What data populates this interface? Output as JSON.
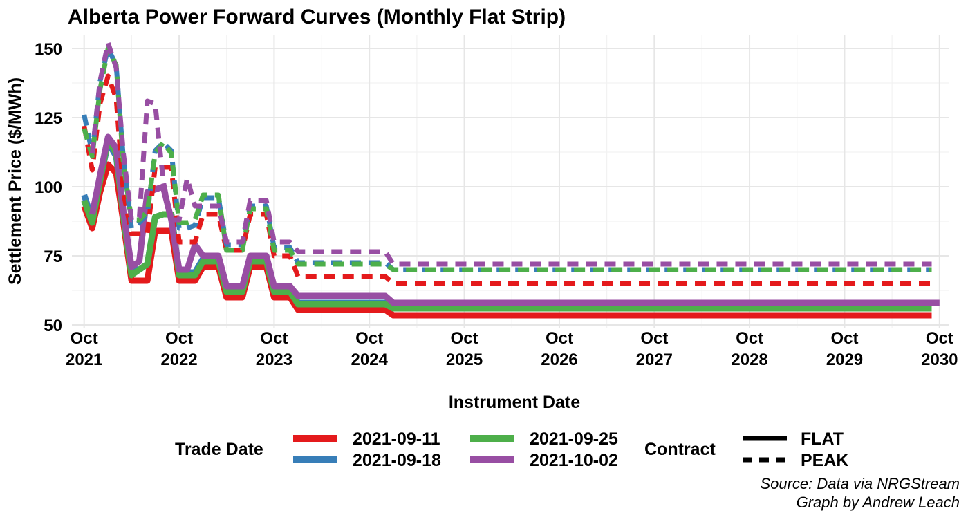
{
  "chart_data": {
    "type": "line",
    "title": "Alberta Power Forward Curves (Monthly Flat Strip)",
    "xlabel": "Instrument Date",
    "ylabel": "Settlement Price ($/MWh)",
    "ylim": [
      49,
      155
    ],
    "yticks": [
      50,
      75,
      100,
      125,
      150
    ],
    "xlim": [
      "2021-08-15",
      "2030-11-05"
    ],
    "xticks": [
      {
        "date": "2021-10-01",
        "label": [
          "Oct",
          "2021"
        ]
      },
      {
        "date": "2022-10-01",
        "label": [
          "Oct",
          "2022"
        ]
      },
      {
        "date": "2023-10-01",
        "label": [
          "Oct",
          "2023"
        ]
      },
      {
        "date": "2024-10-01",
        "label": [
          "Oct",
          "2024"
        ]
      },
      {
        "date": "2025-10-01",
        "label": [
          "Oct",
          "2025"
        ]
      },
      {
        "date": "2026-10-01",
        "label": [
          "Oct",
          "2026"
        ]
      },
      {
        "date": "2027-10-01",
        "label": [
          "Oct",
          "2027"
        ]
      },
      {
        "date": "2028-10-01",
        "label": [
          "Oct",
          "2028"
        ]
      },
      {
        "date": "2029-10-01",
        "label": [
          "Oct",
          "2029"
        ]
      },
      {
        "date": "2030-10-01",
        "label": [
          "Oct",
          "2030"
        ]
      }
    ],
    "grid": true,
    "legend": {
      "position": "bottom",
      "color_title": "Trade Date",
      "linetype_title": "Contract",
      "linetypes": [
        {
          "label": "FLAT",
          "dash": "solid"
        },
        {
          "label": "PEAK",
          "dash": "dashed"
        }
      ]
    },
    "series": [
      {
        "name": "2021-09-11",
        "color": "#E41A1C",
        "flat": {
          "x": [
            "2021-10-01",
            "2021-11-01",
            "2021-12-01",
            "2022-01-01",
            "2022-02-01",
            "2022-03-01",
            "2022-04-01",
            "2022-05-01",
            "2022-06-01",
            "2022-07-01",
            "2022-08-01",
            "2022-09-01",
            "2022-10-01",
            "2022-11-01",
            "2022-12-01",
            "2023-01-01",
            "2023-02-01",
            "2023-03-01",
            "2023-04-01",
            "2023-05-01",
            "2023-06-01",
            "2023-07-01",
            "2023-08-01",
            "2023-09-01",
            "2023-10-01",
            "2023-11-01",
            "2023-12-01",
            "2024-01-01",
            "2024-12-01",
            "2025-01-01",
            "2030-09-01"
          ],
          "y": [
            93,
            85,
            98,
            108,
            105,
            87,
            66,
            66,
            66,
            84,
            84,
            84,
            66,
            66,
            66,
            71,
            71,
            71,
            60,
            60,
            60,
            71,
            71,
            71,
            60,
            60,
            60,
            55.5,
            55.5,
            53.5,
            53.5
          ]
        },
        "peak": {
          "x": [
            "2021-10-01",
            "2021-11-01",
            "2021-12-01",
            "2022-01-01",
            "2022-02-01",
            "2022-03-01",
            "2022-04-01",
            "2022-05-01",
            "2022-06-01",
            "2022-07-01",
            "2022-08-01",
            "2022-09-01",
            "2022-10-01",
            "2022-11-01",
            "2022-12-01",
            "2023-01-01",
            "2023-02-01",
            "2023-03-01",
            "2023-04-01",
            "2023-05-01",
            "2023-06-01",
            "2023-07-01",
            "2023-08-01",
            "2023-09-01",
            "2023-10-01",
            "2023-11-01",
            "2023-12-01",
            "2024-01-01",
            "2024-12-01",
            "2025-01-01",
            "2030-09-01"
          ],
          "y": [
            122,
            106,
            130,
            140,
            132,
            98,
            83,
            83,
            83,
            107,
            107,
            107,
            80,
            80,
            80,
            90,
            90,
            90,
            77,
            77,
            77,
            90,
            90,
            90,
            75,
            75,
            75,
            67.5,
            67.5,
            65,
            65
          ]
        }
      },
      {
        "name": "2021-09-18",
        "color": "#377EB8",
        "flat": {
          "x": [
            "2021-10-01",
            "2021-11-01",
            "2021-12-01",
            "2022-01-01",
            "2022-02-01",
            "2022-03-01",
            "2022-04-01",
            "2022-05-01",
            "2022-06-01",
            "2022-07-01",
            "2022-08-01",
            "2022-09-01",
            "2022-10-01",
            "2022-11-01",
            "2022-12-01",
            "2023-01-01",
            "2023-02-01",
            "2023-03-01",
            "2023-04-01",
            "2023-05-01",
            "2023-06-01",
            "2023-07-01",
            "2023-08-01",
            "2023-09-01",
            "2023-10-01",
            "2023-11-01",
            "2023-12-01",
            "2024-01-01",
            "2024-12-01",
            "2025-01-01",
            "2030-09-01"
          ],
          "y": [
            97,
            88,
            102,
            116,
            111,
            90,
            70,
            70,
            72,
            89,
            90,
            90,
            69,
            69,
            69,
            74,
            74,
            74,
            63,
            63,
            63,
            74,
            74,
            74,
            63,
            63,
            63,
            58,
            58,
            56,
            56
          ]
        },
        "peak": {
          "x": [
            "2021-10-01",
            "2021-11-01",
            "2021-12-01",
            "2022-01-01",
            "2022-02-01",
            "2022-03-01",
            "2022-04-01",
            "2022-05-01",
            "2022-06-01",
            "2022-07-01",
            "2022-08-01",
            "2022-09-01",
            "2022-10-01",
            "2022-11-01",
            "2022-12-01",
            "2023-01-01",
            "2023-02-01",
            "2023-03-01",
            "2023-04-01",
            "2023-05-01",
            "2023-06-01",
            "2023-07-01",
            "2023-08-01",
            "2023-09-01",
            "2023-10-01",
            "2023-11-01",
            "2023-12-01",
            "2024-01-01",
            "2024-12-01",
            "2025-01-01",
            "2030-09-01"
          ],
          "y": [
            126,
            112,
            138,
            150,
            144,
            110,
            85,
            87,
            90,
            113,
            116,
            113,
            85,
            85,
            86,
            96,
            96,
            96,
            79,
            79,
            79,
            93,
            93,
            93,
            78,
            78,
            78,
            72.5,
            72.5,
            70,
            70
          ]
        }
      },
      {
        "name": "2021-09-25",
        "color": "#4DAF4A",
        "flat": {
          "x": [
            "2021-10-01",
            "2021-11-01",
            "2021-12-01",
            "2022-01-01",
            "2022-02-01",
            "2022-03-01",
            "2022-04-01",
            "2022-05-01",
            "2022-06-01",
            "2022-07-01",
            "2022-08-01",
            "2022-09-01",
            "2022-10-01",
            "2022-11-01",
            "2022-12-01",
            "2023-01-01",
            "2023-02-01",
            "2023-03-01",
            "2023-04-01",
            "2023-05-01",
            "2023-06-01",
            "2023-07-01",
            "2023-08-01",
            "2023-09-01",
            "2023-10-01",
            "2023-11-01",
            "2023-12-01",
            "2024-01-01",
            "2024-12-01",
            "2025-01-01",
            "2030-09-01"
          ],
          "y": [
            95,
            87,
            102,
            117,
            112,
            89,
            68,
            70,
            72,
            89,
            90,
            90,
            68,
            68,
            68,
            73,
            73,
            73,
            62,
            62,
            62,
            73,
            73,
            73,
            62,
            62,
            62,
            57.5,
            57.5,
            56,
            56
          ]
        },
        "peak": {
          "x": [
            "2021-10-01",
            "2021-11-01",
            "2021-12-01",
            "2022-01-01",
            "2022-02-01",
            "2022-03-01",
            "2022-04-01",
            "2022-05-01",
            "2022-06-01",
            "2022-07-01",
            "2022-08-01",
            "2022-09-01",
            "2022-10-01",
            "2022-11-01",
            "2022-12-01",
            "2023-01-01",
            "2023-02-01",
            "2023-03-01",
            "2023-04-01",
            "2023-05-01",
            "2023-06-01",
            "2023-07-01",
            "2023-08-01",
            "2023-09-01",
            "2023-10-01",
            "2023-11-01",
            "2023-12-01",
            "2024-01-01",
            "2024-12-01",
            "2025-01-01",
            "2030-09-01"
          ],
          "y": [
            121,
            111,
            135,
            150,
            144,
            108,
            88,
            88,
            91,
            112,
            116,
            112,
            87,
            87,
            88,
            97,
            97,
            97,
            77,
            77,
            77,
            92,
            92,
            92,
            77,
            77,
            77,
            72,
            72,
            70,
            70
          ]
        }
      },
      {
        "name": "2021-10-02",
        "color": "#984EA3",
        "flat": {
          "x": [
            "2021-11-01",
            "2021-12-01",
            "2022-01-01",
            "2022-02-01",
            "2022-03-01",
            "2022-04-01",
            "2022-05-01",
            "2022-06-01",
            "2022-07-01",
            "2022-08-01",
            "2022-09-01",
            "2022-10-01",
            "2022-11-01",
            "2022-12-01",
            "2023-01-01",
            "2023-02-01",
            "2023-03-01",
            "2023-04-01",
            "2023-05-01",
            "2023-06-01",
            "2023-07-01",
            "2023-08-01",
            "2023-09-01",
            "2023-10-01",
            "2023-11-01",
            "2023-12-01",
            "2024-01-01",
            "2024-12-01",
            "2025-01-01",
            "2030-10-01"
          ],
          "y": [
            90,
            104,
            118,
            114,
            91,
            71,
            73,
            98,
            99,
            100,
            88,
            70,
            70,
            79,
            75,
            75,
            75,
            64,
            64,
            64,
            75,
            75,
            75,
            64,
            64,
            64,
            60.5,
            60.5,
            58,
            58
          ]
        },
        "peak": {
          "x": [
            "2021-11-01",
            "2021-12-01",
            "2022-01-01",
            "2022-02-01",
            "2022-03-01",
            "2022-04-01",
            "2022-05-01",
            "2022-06-01",
            "2022-07-01",
            "2022-08-01",
            "2022-09-01",
            "2022-10-01",
            "2022-11-01",
            "2022-12-01",
            "2023-01-01",
            "2023-02-01",
            "2023-03-01",
            "2023-04-01",
            "2023-05-01",
            "2023-06-01",
            "2023-07-01",
            "2023-08-01",
            "2023-09-01",
            "2023-10-01",
            "2023-11-01",
            "2023-12-01",
            "2024-01-01",
            "2024-12-01",
            "2025-01-01",
            "2030-09-01"
          ],
          "y": [
            112,
            138,
            152,
            143,
            112,
            88,
            89,
            131,
            130,
            102,
            88,
            88,
            103,
            93,
            93,
            93,
            93,
            80,
            80,
            80,
            95,
            95,
            95,
            80,
            80,
            80,
            76.5,
            76.5,
            72,
            72
          ]
        }
      }
    ]
  },
  "caption": {
    "line1": "Source: Data via NRGStream",
    "line2": "Graph by Andrew Leach"
  }
}
